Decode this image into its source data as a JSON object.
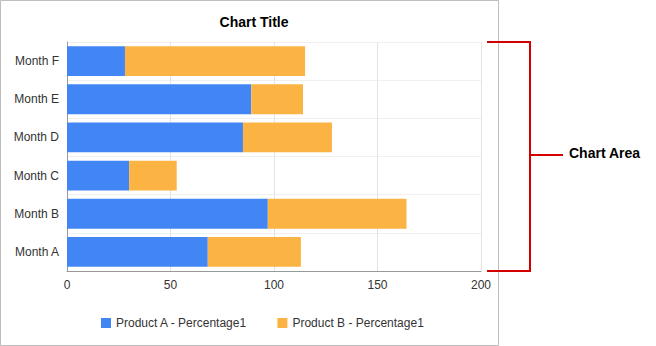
{
  "chart_data": {
    "type": "bar",
    "title": "Chart Title",
    "orientation": "horizontal",
    "stacked": true,
    "grid": true,
    "legend": "bottom",
    "categories": [
      "Month A",
      "Month B",
      "Month C",
      "Month D",
      "Month E",
      "Month F"
    ],
    "series": [
      {
        "name": "Product A - Percentage1",
        "color": "#4285f4",
        "values": [
          68,
          97,
          30,
          85,
          89,
          28
        ]
      },
      {
        "name": "Product B - Percentage1",
        "color": "#fbb443",
        "values": [
          45,
          67,
          23,
          43,
          25,
          87
        ]
      }
    ],
    "xlim": [
      0,
      200
    ],
    "xticks": [
      0,
      50,
      100,
      150,
      200
    ],
    "annotations": [
      "Chart Area"
    ]
  }
}
